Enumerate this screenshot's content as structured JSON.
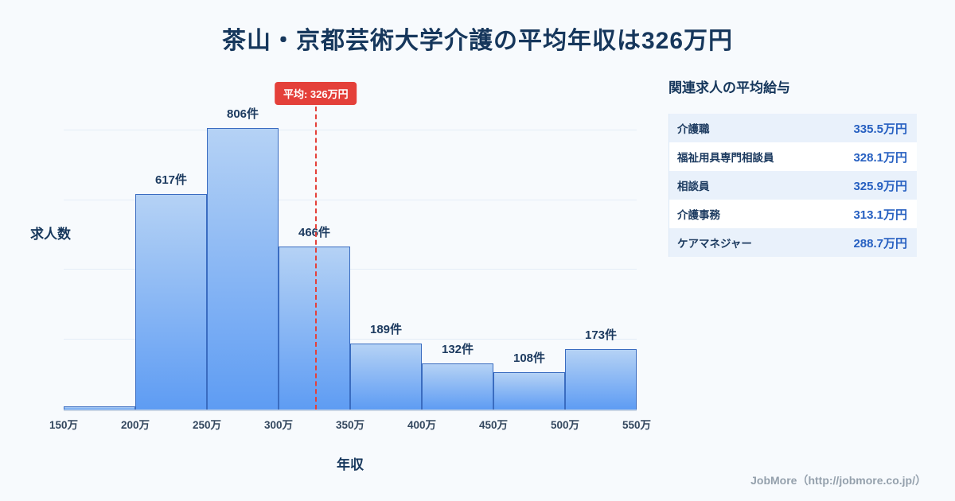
{
  "chart_data": {
    "type": "bar",
    "title": "茶山・京都芸術大学介護の平均年収は326万円",
    "xlabel": "年収",
    "ylabel": "求人数",
    "bin_edges": [
      150,
      200,
      250,
      300,
      350,
      400,
      450,
      500,
      550
    ],
    "tick_labels": [
      "150万",
      "200万",
      "250万",
      "300万",
      "350万",
      "400万",
      "450万",
      "500万",
      "550万"
    ],
    "values": [
      10,
      617,
      806,
      466,
      189,
      132,
      108,
      173
    ],
    "bar_labels": [
      "",
      "617件",
      "806件",
      "466件",
      "189件",
      "132件",
      "108件",
      "173件"
    ],
    "average": {
      "value": 326,
      "label": "平均: 326万円"
    },
    "ylim": [
      0,
      900
    ],
    "gridline_values": [
      200,
      400,
      600,
      800
    ],
    "legend": "none"
  },
  "side_panel": {
    "title": "関連求人の平均給与",
    "rows": [
      {
        "label": "介護職",
        "value": "335.5万円"
      },
      {
        "label": "福祉用具専門相談員",
        "value": "328.1万円"
      },
      {
        "label": "相談員",
        "value": "325.9万円"
      },
      {
        "label": "介護事務",
        "value": "313.1万円"
      },
      {
        "label": "ケアマネジャー",
        "value": "288.7万円"
      }
    ]
  },
  "footer": {
    "text": "JobMore（http://jobmore.co.jp/）"
  },
  "colors": {
    "background": "#f7fafd",
    "title_navy": "#16375c",
    "bar_gradient_top": "#b5d2f5",
    "bar_gradient_bottom": "#5e9cf3",
    "bar_border": "#3a6cc0",
    "accent_red": "#e4403a",
    "value_blue": "#2760c1",
    "row_alt_bg": "#e9f1fb"
  }
}
